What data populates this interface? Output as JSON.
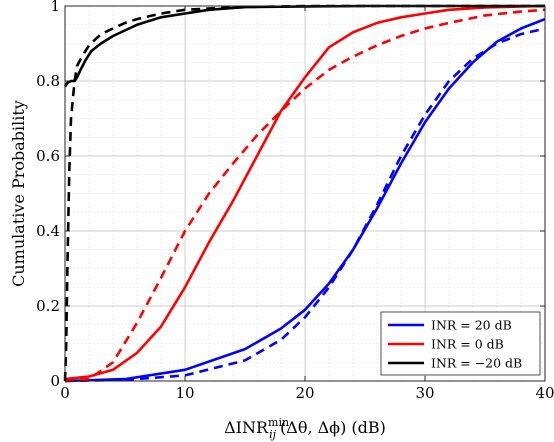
{
  "chart_data": {
    "type": "line",
    "xlabel": "ΔINR_ij^min(Δθ, Δϕ) (dB)",
    "ylabel": "Cumulative Probability",
    "xlim": [
      0,
      40
    ],
    "ylim": [
      0,
      1
    ],
    "x_ticks": [
      "0",
      "10",
      "20",
      "30",
      "40"
    ],
    "y_ticks": [
      "0",
      "0.2",
      "0.4",
      "0.6",
      "0.8",
      "1"
    ],
    "grid": true,
    "legend_position": "bottom-right",
    "legend": [
      "INR = 20 dB",
      "INR = 0 dB",
      "INR = −20 dB"
    ],
    "series": [
      {
        "name": "INR = 20 dB",
        "color": "#0000ff",
        "style": "solid",
        "x": [
          0,
          5,
          10,
          15,
          18,
          20,
          22,
          24,
          26,
          28,
          30,
          32,
          34,
          36,
          38,
          40
        ],
        "y": [
          0.0,
          0.005,
          0.03,
          0.085,
          0.14,
          0.19,
          0.26,
          0.35,
          0.46,
          0.58,
          0.69,
          0.78,
          0.85,
          0.905,
          0.94,
          0.965
        ]
      },
      {
        "name": "INR = 20 dB (dashed)",
        "color": "#0000ff",
        "style": "dashed",
        "x": [
          0,
          5,
          10,
          15,
          18,
          20,
          22,
          24,
          26,
          28,
          30,
          32,
          34,
          36,
          38,
          40
        ],
        "y": [
          0.0,
          0.003,
          0.015,
          0.055,
          0.11,
          0.17,
          0.25,
          0.35,
          0.47,
          0.6,
          0.71,
          0.8,
          0.86,
          0.9,
          0.925,
          0.94
        ]
      },
      {
        "name": "INR = 0 dB",
        "color": "#ff0000",
        "style": "solid",
        "x": [
          0,
          2,
          4,
          6,
          8,
          10,
          12,
          14,
          16,
          18,
          20,
          22,
          24,
          26,
          28,
          30,
          32,
          35,
          38,
          40
        ],
        "y": [
          0.005,
          0.012,
          0.03,
          0.075,
          0.145,
          0.25,
          0.37,
          0.48,
          0.6,
          0.72,
          0.81,
          0.89,
          0.93,
          0.955,
          0.97,
          0.98,
          0.99,
          0.996,
          0.999,
          1.0
        ]
      },
      {
        "name": "INR = 0 dB (dashed)",
        "color": "#ff0000",
        "style": "dashed",
        "x": [
          0,
          2,
          4,
          6,
          8,
          10,
          12,
          14,
          16,
          18,
          20,
          22,
          24,
          26,
          28,
          30,
          32,
          35,
          38,
          40
        ],
        "y": [
          0.0,
          0.005,
          0.05,
          0.155,
          0.275,
          0.4,
          0.5,
          0.58,
          0.655,
          0.72,
          0.78,
          0.83,
          0.865,
          0.895,
          0.92,
          0.94,
          0.955,
          0.975,
          0.985,
          0.99
        ]
      },
      {
        "name": "INR = −20 dB",
        "color": "#000000",
        "style": "solid",
        "x": [
          0,
          0.1,
          0.2,
          0.5,
          0.8,
          1.0,
          1.3,
          1.7,
          2.2,
          3,
          4,
          6,
          8,
          10,
          12,
          15,
          20,
          25,
          30,
          35,
          40
        ],
        "y": [
          0.785,
          0.79,
          0.795,
          0.8,
          0.8,
          0.81,
          0.83,
          0.855,
          0.88,
          0.9,
          0.92,
          0.95,
          0.97,
          0.98,
          0.99,
          0.997,
          0.999,
          1.0,
          1.0,
          1.0,
          1.0
        ]
      },
      {
        "name": "INR = −20 dB (dashed)",
        "color": "#000000",
        "style": "dashed",
        "x": [
          0,
          0.1,
          0.2,
          0.35,
          0.5,
          0.8,
          1.0,
          1.5,
          2.0,
          3.0,
          4.0,
          5.0,
          6.0,
          8.0,
          10.0,
          13.0,
          16.0,
          20.0,
          30.0,
          40.0
        ],
        "y": [
          0.0,
          0.1,
          0.3,
          0.55,
          0.7,
          0.8,
          0.84,
          0.87,
          0.895,
          0.925,
          0.94,
          0.955,
          0.965,
          0.98,
          0.99,
          0.995,
          0.998,
          1.0,
          1.0,
          1.0
        ]
      }
    ]
  }
}
